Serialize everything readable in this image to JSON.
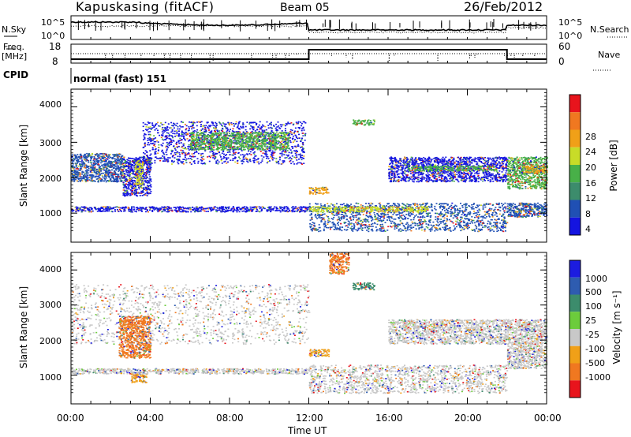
{
  "header": {
    "station": "Kapuskasing (fitACF)",
    "beam": "Beam 05",
    "date": "26/Feb/2012"
  },
  "noise_panel": {
    "left_label": "N.Sky",
    "left_ticks": [
      "10^5",
      "10^0"
    ],
    "right_ticks": [
      "10^5",
      "10^0"
    ],
    "right_label": "N.Search"
  },
  "freq_panel": {
    "left_label_line1": "Freq.",
    "left_label_line2": "[MHz]",
    "left_ticks": [
      "18",
      "8"
    ],
    "right_ticks": [
      "60",
      "0"
    ],
    "right_label": "Nave"
  },
  "cpid": {
    "label": "CPID",
    "mode": "normal (fast) 151"
  },
  "chart_data": [
    {
      "type": "heatmap",
      "name": "Power",
      "ylabel": "Slant Range [km]",
      "yticks": [
        "4000",
        "3000",
        "2000",
        "1000"
      ],
      "ylim": [
        180,
        4500
      ],
      "xlim_hours": [
        0,
        24
      ],
      "colorbar_label": "Power [dB]",
      "colorbar_ticks": [
        "28",
        "24",
        "20",
        "16",
        "12",
        "8",
        "4"
      ],
      "colors": [
        "#e8141c",
        "#f07820",
        "#f0a018",
        "#c8dc28",
        "#48b048",
        "#3c8c6c",
        "#2050b4",
        "#1414e0"
      ],
      "scatter_regions": [
        {
          "t0": 0.0,
          "t1": 2.6,
          "r0": 1900,
          "r1": 2700,
          "dominant": "#2050b4"
        },
        {
          "t0": 2.6,
          "t1": 4.0,
          "r0": 1500,
          "r1": 2600,
          "dominant": "#1414e0"
        },
        {
          "t0": 3.2,
          "t1": 3.6,
          "r0": 1800,
          "r1": 2500,
          "dominant": "#c8dc28"
        },
        {
          "t0": 3.6,
          "t1": 11.8,
          "r0": 2400,
          "r1": 3600,
          "dominant": "#1414e0"
        },
        {
          "t0": 6.0,
          "t1": 11.0,
          "r0": 2800,
          "r1": 3300,
          "dominant": "#48b048"
        },
        {
          "t0": 0.0,
          "t1": 12.0,
          "r0": 1050,
          "r1": 1200,
          "dominant": "#1414e0"
        },
        {
          "t0": 12.0,
          "t1": 22.0,
          "r0": 500,
          "r1": 1300,
          "dominant": "#2050b4"
        },
        {
          "t0": 12.0,
          "t1": 18.0,
          "r0": 1050,
          "r1": 1200,
          "dominant": "#c8dc28"
        },
        {
          "t0": 12.0,
          "t1": 13.0,
          "r0": 1550,
          "r1": 1750,
          "dominant": "#f0a018"
        },
        {
          "t0": 14.2,
          "t1": 15.3,
          "r0": 3500,
          "r1": 3650,
          "dominant": "#48b048"
        },
        {
          "t0": 16.0,
          "t1": 22.0,
          "r0": 1900,
          "r1": 2600,
          "dominant": "#1414e0"
        },
        {
          "t0": 17.0,
          "t1": 21.5,
          "r0": 2200,
          "r1": 2350,
          "dominant": "#48b048"
        },
        {
          "t0": 22.0,
          "t1": 24.0,
          "r0": 1700,
          "r1": 2600,
          "dominant": "#48b048"
        },
        {
          "t0": 22.8,
          "t1": 24.0,
          "r0": 2150,
          "r1": 2350,
          "dominant": "#f0a018"
        },
        {
          "t0": 22.0,
          "t1": 24.0,
          "r0": 900,
          "r1": 1300,
          "dominant": "#2050b4"
        }
      ]
    },
    {
      "type": "heatmap",
      "name": "Velocity",
      "ylabel": "Slant Range [km]",
      "yticks": [
        "4000",
        "3000",
        "2000",
        "1000"
      ],
      "ylim": [
        180,
        4500
      ],
      "xlim_hours": [
        0,
        24
      ],
      "xticks": [
        "00:00",
        "04:00",
        "08:00",
        "12:00",
        "16:00",
        "20:00",
        "00:00"
      ],
      "xlabel": "Time UT",
      "colorbar_label": "Velocity [m s⁻¹]",
      "colorbar_ticks": [
        "1000",
        "500",
        "100",
        "25",
        "-25",
        "-100",
        "-500",
        "-1000"
      ],
      "colors": [
        "#1c1ce0",
        "#2e5cb0",
        "#3c8c6c",
        "#6ccc3c",
        "#c8c8c8",
        "#f0a018",
        "#f07820",
        "#e8141c"
      ],
      "scatter_regions": [
        {
          "t0": 0.0,
          "t1": 12.0,
          "r0": 1900,
          "r1": 3600,
          "dominant": "#c8c8c8"
        },
        {
          "t0": 2.4,
          "t1": 4.0,
          "r0": 1500,
          "r1": 2700,
          "dominant": "#f07820"
        },
        {
          "t0": 3.0,
          "t1": 3.8,
          "r0": 800,
          "r1": 1100,
          "dominant": "#f0a018"
        },
        {
          "t0": 0.0,
          "t1": 12.0,
          "r0": 1050,
          "r1": 1200,
          "dominant": "#c8c8c8"
        },
        {
          "t0": 12.0,
          "t1": 22.0,
          "r0": 500,
          "r1": 1300,
          "dominant": "#c8c8c8"
        },
        {
          "t0": 12.0,
          "t1": 13.0,
          "r0": 1550,
          "r1": 1750,
          "dominant": "#f0a018"
        },
        {
          "t0": 13.0,
          "t1": 14.0,
          "r0": 3900,
          "r1": 4500,
          "dominant": "#f07820"
        },
        {
          "t0": 14.2,
          "t1": 15.3,
          "r0": 3450,
          "r1": 3650,
          "dominant": "#3c8c6c"
        },
        {
          "t0": 16.0,
          "t1": 22.0,
          "r0": 1900,
          "r1": 2600,
          "dominant": "#c8c8c8"
        },
        {
          "t0": 22.0,
          "t1": 24.0,
          "r0": 1200,
          "r1": 2600,
          "dominant": "#c8c8c8"
        }
      ]
    }
  ]
}
